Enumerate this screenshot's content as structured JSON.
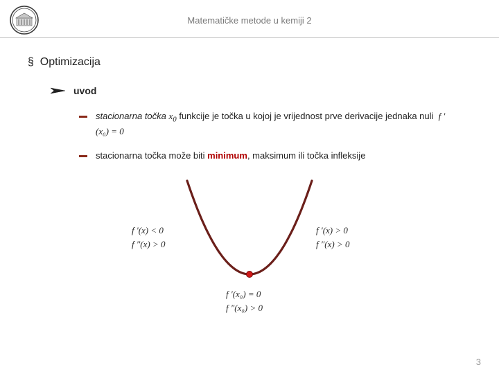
{
  "header": {
    "title": "Matematičke metode u kemiji 2"
  },
  "section": {
    "marker": "§",
    "title": "Optimizacija"
  },
  "subsection": {
    "title": "uvod"
  },
  "bullet1": {
    "pre": "stacionarna točka ",
    "var1": "x",
    "sub1": "0",
    "mid": " funkcije je točka u kojoj je vrijednost prve derivacije jednaka nuli ",
    "eq": "f ′(x₀) = 0"
  },
  "bullet2": {
    "pre": "stacionarna točka može biti ",
    "min": "minimum",
    "post": ", maksimum ili točka infleksije"
  },
  "diagram": {
    "leftEq1": "f ′(x) < 0",
    "leftEq2": "f ″(x) > 0",
    "rightEq1": "f ′(x) > 0",
    "rightEq2": "f ″(x) > 0",
    "bottomEq1": "f ′(x₀) = 0",
    "bottomEq2": "f ″(x₀) > 0",
    "curve_color": "#6b1f1a",
    "curve_width": 3.2,
    "point_fill": "#d01818",
    "point_stroke": "#7a0e0e"
  },
  "pageNumber": "3",
  "colors": {
    "bullet_dash": "#8a2a1a",
    "red_text": "#b00000",
    "header_text": "#7a7a7a"
  }
}
